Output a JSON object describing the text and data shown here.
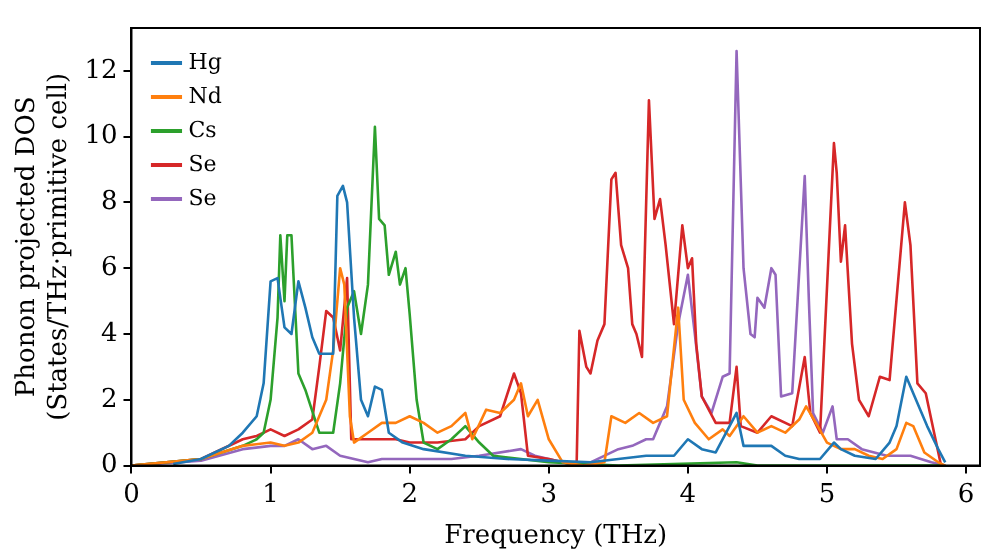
{
  "chart_data": {
    "type": "line",
    "xlabel": "Frequency (THz)",
    "ylabel": "Phonon projected DOS\n(States/THz·primitive cell)",
    "xlim": [
      0,
      6.1
    ],
    "xticks": [
      0,
      1,
      2,
      3,
      4,
      5,
      6
    ],
    "ylim": [
      0,
      13.3
    ],
    "yticks": [
      0,
      2,
      4,
      6,
      8,
      10,
      12
    ],
    "grid": false,
    "legend": "top left",
    "marker": "none",
    "line_style": "solid",
    "series": [
      {
        "name": "Hg",
        "color": "#1f77b4",
        "x": [
          0.3,
          0.5,
          0.7,
          0.8,
          0.9,
          0.95,
          1.0,
          1.05,
          1.1,
          1.15,
          1.2,
          1.25,
          1.3,
          1.35,
          1.45,
          1.48,
          1.52,
          1.55,
          1.6,
          1.65,
          1.7,
          1.75,
          1.8,
          1.85,
          1.95,
          2.1,
          2.4,
          2.7,
          3.0,
          3.3,
          3.5,
          3.7,
          3.9,
          4.0,
          4.1,
          4.2,
          4.35,
          4.4,
          4.6,
          4.7,
          4.8,
          4.95,
          5.05,
          5.1,
          5.2,
          5.35,
          5.45,
          5.5,
          5.57,
          5.62,
          5.72,
          5.8,
          5.85
        ],
        "values": [
          0.05,
          0.2,
          0.6,
          1.0,
          1.5,
          2.5,
          5.6,
          5.7,
          4.2,
          4.0,
          5.6,
          4.8,
          3.9,
          3.4,
          3.4,
          8.2,
          8.5,
          8.0,
          4.5,
          2.0,
          1.5,
          2.4,
          2.3,
          1.0,
          0.7,
          0.5,
          0.3,
          0.2,
          0.15,
          0.1,
          0.2,
          0.3,
          0.3,
          0.8,
          0.5,
          0.4,
          1.6,
          0.6,
          0.6,
          0.3,
          0.2,
          0.2,
          0.7,
          0.5,
          0.3,
          0.2,
          0.7,
          1.2,
          2.7,
          2.2,
          1.2,
          0.5,
          0.1
        ]
      },
      {
        "name": "Nd",
        "color": "#ff7f0e",
        "x": [
          0,
          0.5,
          0.8,
          1.0,
          1.1,
          1.2,
          1.3,
          1.4,
          1.45,
          1.5,
          1.53,
          1.57,
          1.6,
          1.7,
          1.8,
          1.9,
          2.0,
          2.1,
          2.2,
          2.3,
          2.4,
          2.45,
          2.55,
          2.65,
          2.75,
          2.8,
          2.85,
          2.92,
          3.0,
          3.1,
          3.25,
          3.4,
          3.45,
          3.55,
          3.65,
          3.75,
          3.85,
          3.93,
          3.97,
          4.05,
          4.15,
          4.25,
          4.3,
          4.4,
          4.5,
          4.6,
          4.7,
          4.8,
          4.85,
          4.92,
          5.0,
          5.1,
          5.2,
          5.3,
          5.4,
          5.5,
          5.57,
          5.62,
          5.7,
          5.8,
          5.85
        ],
        "values": [
          0,
          0.2,
          0.6,
          0.7,
          0.6,
          0.7,
          1.0,
          2.0,
          3.5,
          6.0,
          5.5,
          1.5,
          0.7,
          1.0,
          1.3,
          1.3,
          1.5,
          1.3,
          1.0,
          1.2,
          1.6,
          0.8,
          1.7,
          1.6,
          2.0,
          2.5,
          1.5,
          2.0,
          0.8,
          0.1,
          0,
          0.1,
          1.5,
          1.3,
          1.6,
          1.3,
          1.5,
          4.8,
          2.0,
          1.3,
          0.8,
          1.1,
          0.9,
          1.5,
          1.0,
          1.2,
          1.0,
          1.4,
          1.8,
          1.3,
          0.7,
          0.5,
          0.5,
          0.3,
          0.2,
          0.5,
          1.3,
          1.2,
          0.4,
          0.1,
          0
        ]
      },
      {
        "name": "Cs",
        "color": "#2ca02c",
        "x": [
          0,
          0.5,
          0.8,
          0.9,
          0.95,
          1.0,
          1.05,
          1.07,
          1.1,
          1.12,
          1.15,
          1.2,
          1.25,
          1.35,
          1.45,
          1.5,
          1.55,
          1.6,
          1.65,
          1.7,
          1.75,
          1.78,
          1.82,
          1.85,
          1.9,
          1.93,
          1.97,
          2.0,
          2.05,
          2.1,
          2.2,
          2.3,
          2.4,
          2.5,
          2.6,
          2.8,
          3.0,
          3.5,
          4.35,
          4.5,
          5.85
        ],
        "values": [
          0,
          0.2,
          0.6,
          0.8,
          1.0,
          2.0,
          4.5,
          7.0,
          5.0,
          7.0,
          7.0,
          2.8,
          2.3,
          1.0,
          1.0,
          2.5,
          4.8,
          5.3,
          4.0,
          5.5,
          10.3,
          7.5,
          7.3,
          5.8,
          6.5,
          5.5,
          6.0,
          4.6,
          2.0,
          0.7,
          0.5,
          0.8,
          1.2,
          0.7,
          0.3,
          0.2,
          0.1,
          0,
          0.1,
          0,
          0
        ]
      },
      {
        "name": "Se",
        "color": "#d62728",
        "x": [
          0,
          0.5,
          0.8,
          0.9,
          1.0,
          1.1,
          1.2,
          1.3,
          1.35,
          1.4,
          1.45,
          1.5,
          1.55,
          1.58,
          1.7,
          1.9,
          2.0,
          2.2,
          2.4,
          2.5,
          2.65,
          2.75,
          2.8,
          2.85,
          3.0,
          3.2,
          3.22,
          3.27,
          3.3,
          3.35,
          3.4,
          3.45,
          3.48,
          3.52,
          3.57,
          3.6,
          3.63,
          3.67,
          3.72,
          3.76,
          3.8,
          3.84,
          3.9,
          3.96,
          4.0,
          4.03,
          4.06,
          4.1,
          4.2,
          4.3,
          4.35,
          4.38,
          4.5,
          4.6,
          4.75,
          4.84,
          4.88,
          4.95,
          5.05,
          5.07,
          5.1,
          5.13,
          5.18,
          5.23,
          5.3,
          5.38,
          5.45,
          5.56,
          5.6,
          5.65,
          5.71,
          5.77,
          5.82
        ],
        "values": [
          0,
          0.2,
          0.8,
          0.9,
          1.1,
          0.9,
          1.1,
          1.4,
          3.0,
          4.7,
          4.5,
          3.5,
          5.7,
          0.8,
          0.8,
          0.8,
          0.7,
          0.7,
          0.8,
          1.2,
          1.5,
          2.8,
          2.2,
          0.3,
          0.2,
          0,
          4.1,
          3.0,
          2.8,
          3.8,
          4.3,
          8.7,
          8.9,
          6.7,
          6.0,
          4.3,
          4.0,
          3.3,
          11.1,
          7.5,
          8.1,
          6.7,
          4.3,
          7.3,
          6.0,
          6.3,
          3.7,
          2.1,
          1.3,
          1.3,
          3.0,
          1.2,
          1.0,
          1.5,
          1.2,
          3.3,
          1.6,
          1.0,
          9.8,
          8.9,
          6.2,
          7.3,
          3.7,
          2.0,
          1.5,
          2.7,
          2.6,
          8.0,
          6.7,
          2.5,
          2.2,
          1.0,
          0
        ]
      },
      {
        "name": "Se",
        "color": "#9467bd",
        "x": [
          0,
          0.5,
          0.8,
          1.0,
          1.1,
          1.2,
          1.3,
          1.4,
          1.5,
          1.6,
          1.7,
          1.8,
          2.0,
          2.3,
          2.5,
          2.8,
          2.9,
          3.0,
          3.2,
          3.3,
          3.5,
          3.6,
          3.7,
          3.75,
          3.85,
          3.93,
          4.0,
          4.05,
          4.1,
          4.17,
          4.25,
          4.3,
          4.35,
          4.4,
          4.45,
          4.48,
          4.5,
          4.55,
          4.6,
          4.63,
          4.67,
          4.75,
          4.84,
          4.87,
          4.9,
          4.97,
          5.04,
          5.07,
          5.15,
          5.25,
          5.43,
          5.6,
          5.75,
          5.85
        ],
        "values": [
          0,
          0.15,
          0.5,
          0.6,
          0.6,
          0.8,
          0.5,
          0.6,
          0.3,
          0.2,
          0.1,
          0.2,
          0.2,
          0.2,
          0.3,
          0.5,
          0.3,
          0.2,
          0,
          0.1,
          0.5,
          0.6,
          0.8,
          0.8,
          1.8,
          4.3,
          5.8,
          4.0,
          2.1,
          1.6,
          2.7,
          2.8,
          12.6,
          6.0,
          4.0,
          3.9,
          5.1,
          4.8,
          6.0,
          5.8,
          2.1,
          2.2,
          8.8,
          5.0,
          1.6,
          1.0,
          1.8,
          0.8,
          0.8,
          0.5,
          0.3,
          0.3,
          0.1,
          0
        ]
      }
    ]
  }
}
